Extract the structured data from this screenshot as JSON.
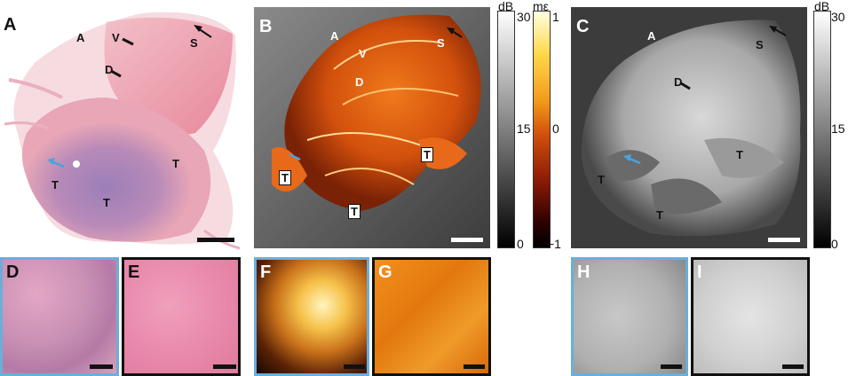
{
  "panels": {
    "A": {
      "label": "A",
      "annotations": {
        "A": "A",
        "V": "V",
        "S": "S",
        "D": "D",
        "T1": "T",
        "T2": "T",
        "T3": "T"
      }
    },
    "B": {
      "label": "B",
      "annotations": {
        "A": "A",
        "V": "V",
        "S": "S",
        "D": "D",
        "T1": "T",
        "T2": "T",
        "T3": "T"
      }
    },
    "C": {
      "label": "C",
      "annotations": {
        "A": "A",
        "S": "S",
        "D": "D",
        "T1": "T",
        "T2": "T",
        "T3": "T"
      }
    },
    "D": {
      "label": "D"
    },
    "E": {
      "label": "E"
    },
    "F": {
      "label": "F"
    },
    "G": {
      "label": "G"
    },
    "H": {
      "label": "H"
    },
    "I": {
      "label": "I"
    }
  },
  "colorbars": {
    "b_db": {
      "unit": "dB",
      "ticks": [
        "30",
        "15",
        "0"
      ]
    },
    "b_strain": {
      "unit": "mε",
      "ticks": [
        "1",
        "0",
        "−1"
      ]
    },
    "c_db": {
      "unit": "dB",
      "ticks": [
        "30",
        "15",
        "0"
      ]
    }
  },
  "colors": {
    "thumb_border_tumor": "#6aaedb",
    "thumb_border_stroma": "#111111",
    "arrow_blue": "#4aa3df"
  }
}
